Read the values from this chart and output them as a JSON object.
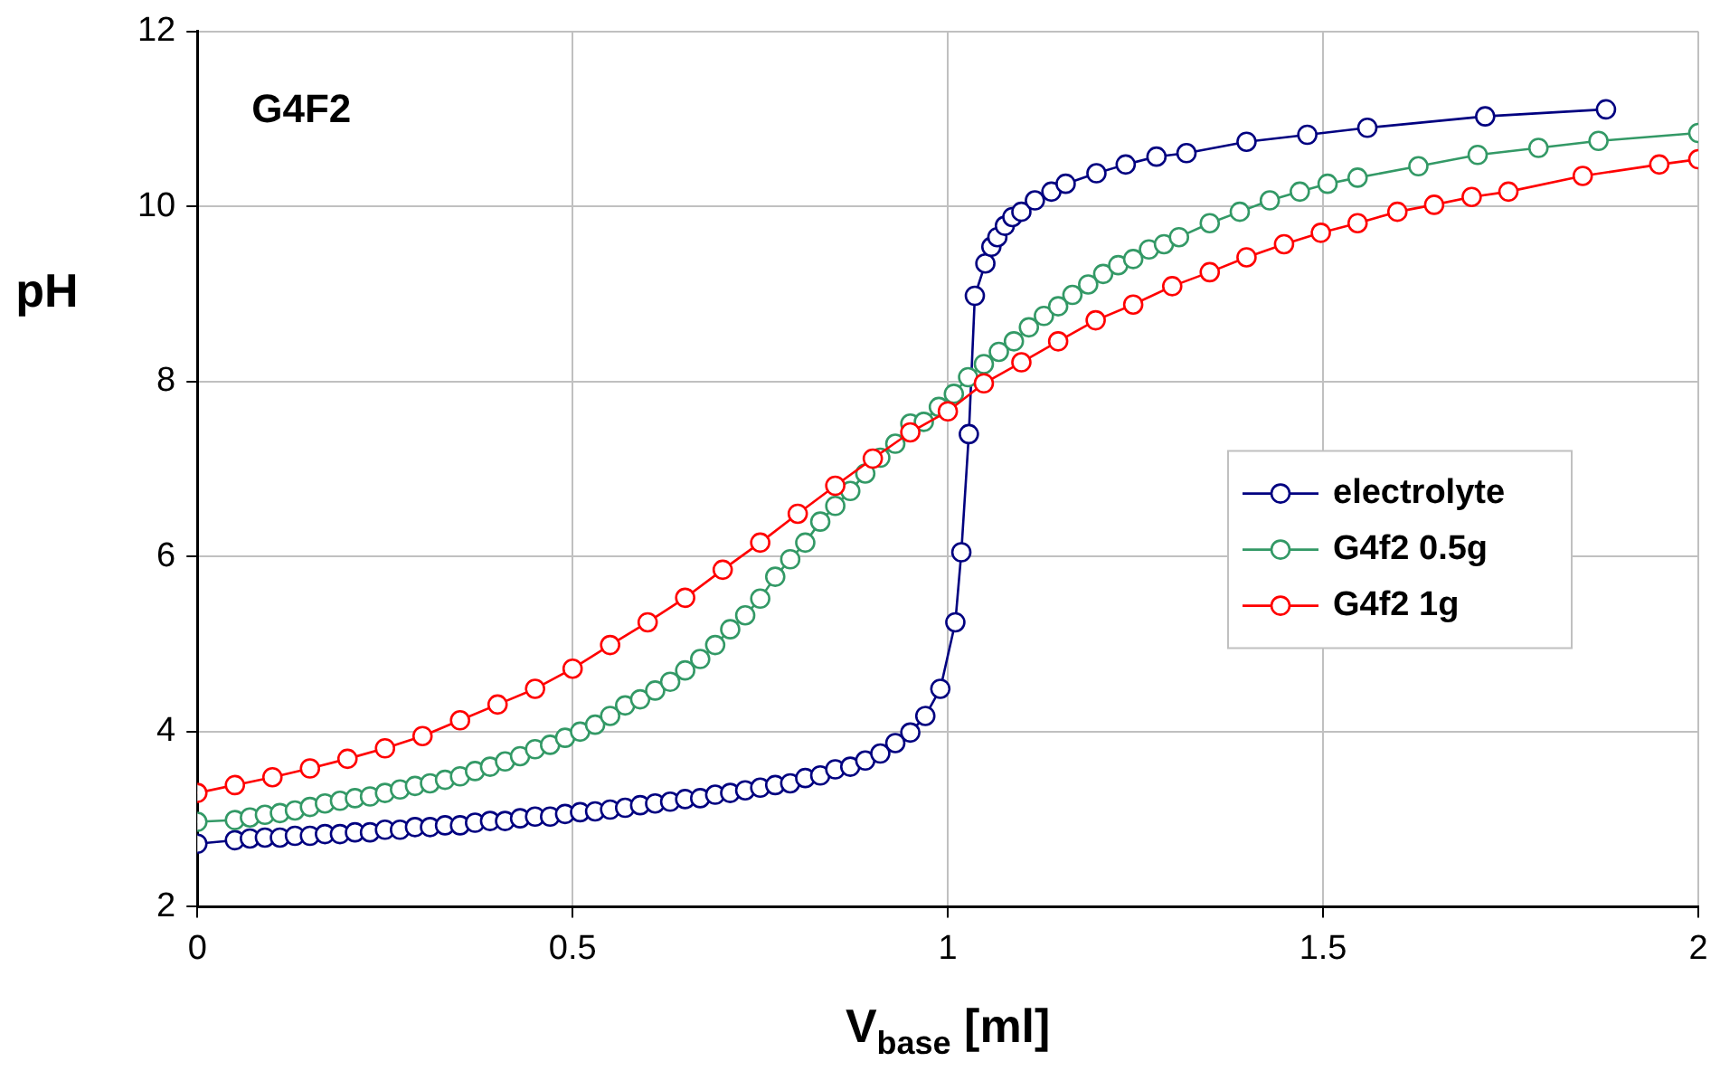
{
  "chart_data": {
    "type": "line",
    "title": "G4F2",
    "xlabel": "V$_{base}$ [ml]",
    "ylabel": "pH",
    "xlim": [
      0,
      2
    ],
    "xticks": [
      0,
      0.5,
      1,
      1.5,
      2
    ],
    "ylim": [
      2,
      12
    ],
    "yticks": [
      2,
      4,
      6,
      8,
      10,
      12
    ],
    "grid": true,
    "legend": "right",
    "marker": "circle",
    "line_style": "solid",
    "series": [
      {
        "name": "electrolyte",
        "color": "#000080",
        "x": [
          0,
          0.05,
          0.07,
          0.09,
          0.11,
          0.13,
          0.15,
          0.17,
          0.19,
          0.21,
          0.23,
          0.25,
          0.27,
          0.29,
          0.31,
          0.33,
          0.35,
          0.37,
          0.39,
          0.41,
          0.43,
          0.45,
          0.47,
          0.49,
          0.51,
          0.53,
          0.55,
          0.57,
          0.59,
          0.61,
          0.63,
          0.65,
          0.67,
          0.69,
          0.71,
          0.73,
          0.75,
          0.77,
          0.79,
          0.81,
          0.83,
          0.85,
          0.87,
          0.89,
          0.91,
          0.93,
          0.95,
          0.97,
          0.99,
          1.01,
          1.018,
          1.028,
          1.036,
          1.05,
          1.058,
          1.066,
          1.076,
          1.086,
          1.098,
          1.116,
          1.138,
          1.157,
          1.198,
          1.237,
          1.278,
          1.318,
          1.398,
          1.479,
          1.559,
          1.716,
          1.877
        ],
        "values": [
          2.72,
          2.76,
          2.78,
          2.79,
          2.79,
          2.81,
          2.81,
          2.83,
          2.83,
          2.85,
          2.85,
          2.88,
          2.88,
          2.91,
          2.91,
          2.93,
          2.93,
          2.96,
          2.98,
          2.98,
          3.01,
          3.03,
          3.03,
          3.06,
          3.08,
          3.09,
          3.11,
          3.13,
          3.16,
          3.18,
          3.2,
          3.23,
          3.24,
          3.28,
          3.3,
          3.33,
          3.36,
          3.39,
          3.41,
          3.47,
          3.5,
          3.57,
          3.6,
          3.67,
          3.75,
          3.87,
          3.99,
          4.18,
          4.49,
          5.25,
          6.05,
          7.4,
          8.98,
          9.35,
          9.54,
          9.65,
          9.78,
          9.88,
          9.94,
          10.07,
          10.17,
          10.26,
          10.38,
          10.48,
          10.57,
          10.61,
          10.74,
          10.82,
          10.9,
          11.03,
          11.11
        ]
      },
      {
        "name": "G4f2 0.5g",
        "color": "#339966",
        "x": [
          0,
          0.05,
          0.07,
          0.09,
          0.11,
          0.13,
          0.15,
          0.17,
          0.19,
          0.21,
          0.23,
          0.25,
          0.27,
          0.29,
          0.31,
          0.33,
          0.35,
          0.37,
          0.39,
          0.41,
          0.43,
          0.45,
          0.47,
          0.49,
          0.51,
          0.53,
          0.55,
          0.57,
          0.59,
          0.61,
          0.63,
          0.65,
          0.67,
          0.69,
          0.71,
          0.73,
          0.75,
          0.77,
          0.79,
          0.81,
          0.83,
          0.85,
          0.87,
          0.89,
          0.91,
          0.93,
          0.95,
          0.968,
          0.988,
          1.008,
          1.027,
          1.048,
          1.068,
          1.088,
          1.108,
          1.128,
          1.147,
          1.166,
          1.187,
          1.207,
          1.227,
          1.247,
          1.268,
          1.288,
          1.308,
          1.349,
          1.389,
          1.429,
          1.469,
          1.506,
          1.546,
          1.627,
          1.706,
          1.787,
          1.867,
          2.0
        ],
        "values": [
          2.97,
          2.99,
          3.02,
          3.05,
          3.07,
          3.1,
          3.14,
          3.18,
          3.21,
          3.24,
          3.26,
          3.3,
          3.34,
          3.38,
          3.41,
          3.45,
          3.49,
          3.55,
          3.6,
          3.66,
          3.72,
          3.8,
          3.85,
          3.93,
          4.0,
          4.08,
          4.18,
          4.3,
          4.37,
          4.47,
          4.57,
          4.7,
          4.83,
          4.99,
          5.17,
          5.33,
          5.52,
          5.77,
          5.97,
          6.16,
          6.4,
          6.58,
          6.75,
          6.95,
          7.13,
          7.29,
          7.52,
          7.54,
          7.71,
          7.86,
          8.05,
          8.2,
          8.34,
          8.46,
          8.62,
          8.75,
          8.86,
          8.99,
          9.11,
          9.23,
          9.33,
          9.4,
          9.51,
          9.57,
          9.65,
          9.81,
          9.94,
          10.07,
          10.17,
          10.26,
          10.33,
          10.46,
          10.59,
          10.67,
          10.75,
          10.84
        ]
      },
      {
        "name": "G4f2 1g",
        "color": "#ff0000",
        "x": [
          0,
          0.05,
          0.1,
          0.15,
          0.2,
          0.25,
          0.3,
          0.35,
          0.4,
          0.45,
          0.5,
          0.55,
          0.6,
          0.65,
          0.7,
          0.75,
          0.8,
          0.85,
          0.9,
          0.95,
          1.0,
          1.048,
          1.098,
          1.147,
          1.197,
          1.247,
          1.299,
          1.349,
          1.398,
          1.448,
          1.497,
          1.546,
          1.599,
          1.648,
          1.698,
          1.747,
          1.846,
          1.948,
          2.0
        ],
        "values": [
          3.3,
          3.39,
          3.48,
          3.58,
          3.69,
          3.81,
          3.95,
          4.13,
          4.31,
          4.49,
          4.72,
          4.99,
          5.25,
          5.53,
          5.85,
          6.16,
          6.49,
          6.81,
          7.12,
          7.42,
          7.66,
          7.98,
          8.22,
          8.46,
          8.7,
          8.88,
          9.09,
          9.25,
          9.42,
          9.57,
          9.7,
          9.81,
          9.94,
          10.02,
          10.11,
          10.17,
          10.35,
          10.48,
          10.54
        ]
      }
    ]
  }
}
